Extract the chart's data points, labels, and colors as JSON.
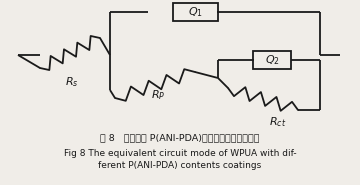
{
  "bg_color": "#f0ede8",
  "line_color": "#1a1a1a",
  "line_width": 1.3,
  "caption_cn": "图 8   不同含量 P(ANI-PDA)涂层的等效电路模型图",
  "caption_en1": "Fig 8 The equivalent circuit mode of WPUA with dif-",
  "caption_en2": "ferent P(ANI-PDA) contents coatings",
  "caption_fontsize": 6.8,
  "caption_en_fontsize": 6.5
}
